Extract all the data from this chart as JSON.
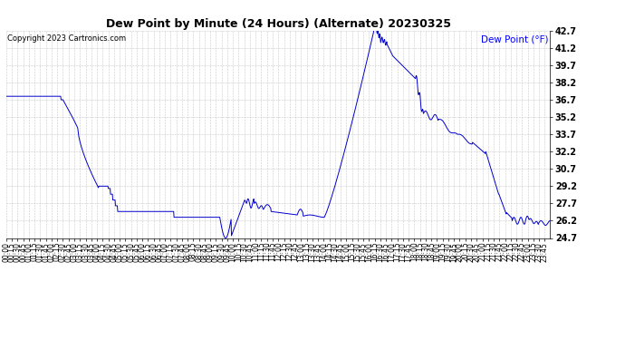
{
  "title": "Dew Point by Minute (24 Hours) (Alternate) 20230325",
  "copyright_text": "Copyright 2023 Cartronics.com",
  "legend_label": "Dew Point (°F)",
  "line_color": "#0000cc",
  "background_color": "#ffffff",
  "grid_color": "#bbbbbb",
  "ylim": [
    24.7,
    42.7
  ],
  "yticks": [
    24.7,
    26.2,
    27.7,
    29.2,
    30.7,
    32.2,
    33.7,
    35.2,
    36.7,
    38.2,
    39.7,
    41.2,
    42.7
  ],
  "title_fontsize": 9,
  "tick_fontsize": 5.5,
  "ytick_fontsize": 7,
  "copyright_fontsize": 6,
  "legend_fontsize": 7.5
}
